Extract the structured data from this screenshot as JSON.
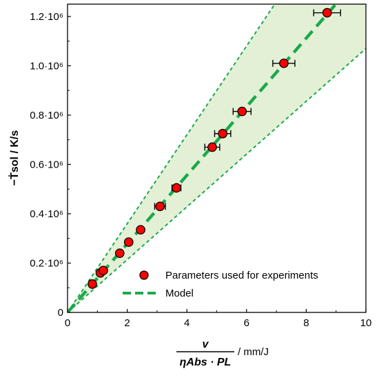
{
  "chart_data": {
    "type": "scatter",
    "xlim": [
      0,
      10
    ],
    "ylim": [
      0,
      1250000
    ],
    "xticks": [
      {
        "value": 0,
        "label": "0"
      },
      {
        "value": 2,
        "label": "2"
      },
      {
        "value": 4,
        "label": "4"
      },
      {
        "value": 6,
        "label": "6"
      },
      {
        "value": 8,
        "label": "8"
      },
      {
        "value": 10,
        "label": "10"
      }
    ],
    "yticks": [
      {
        "value": 0,
        "label": "0"
      },
      {
        "value": 200000,
        "label": "0.2·10⁶"
      },
      {
        "value": 400000,
        "label": "0.4·10⁶"
      },
      {
        "value": 600000,
        "label": "0.6·10⁶"
      },
      {
        "value": 800000,
        "label": "0.8·10⁶"
      },
      {
        "value": 1000000,
        "label": "1.0·10⁶"
      },
      {
        "value": 1200000,
        "label": "1.2·10⁶"
      }
    ],
    "xlabel": {
      "numerator": "v",
      "denominator": "ηAbs · PL",
      "unit": "/ mm/J"
    },
    "ylabel": {
      "main": "−Ṫsol / K/s"
    },
    "grid": false,
    "legend_position": "bottom-right",
    "series": [
      {
        "name": "Parameters used for experiments",
        "kind": "points_with_xerror",
        "marker_fill": "#ff0000",
        "marker_edge": "#000000",
        "points": [
          {
            "x": 0.83,
            "y": 115000,
            "xerr": 0.0
          },
          {
            "x": 1.1,
            "y": 160000,
            "xerr": 0.0
          },
          {
            "x": 1.2,
            "y": 170000,
            "xerr": 0.0
          },
          {
            "x": 1.75,
            "y": 240000,
            "xerr": 0.0
          },
          {
            "x": 2.05,
            "y": 285000,
            "xerr": 0.0
          },
          {
            "x": 2.45,
            "y": 335000,
            "xerr": 0.0
          },
          {
            "x": 3.1,
            "y": 430000,
            "xerr": 0.18
          },
          {
            "x": 3.65,
            "y": 505000,
            "xerr": 0.15
          },
          {
            "x": 4.85,
            "y": 670000,
            "xerr": 0.25
          },
          {
            "x": 5.2,
            "y": 725000,
            "xerr": 0.27
          },
          {
            "x": 5.85,
            "y": 815000,
            "xerr": 0.3
          },
          {
            "x": 7.25,
            "y": 1010000,
            "xerr": 0.37
          },
          {
            "x": 8.7,
            "y": 1215000,
            "xerr": 0.45
          }
        ]
      },
      {
        "name": "Model",
        "kind": "line",
        "style": "dashed",
        "color": "#1aaa4a",
        "slope": 139000
      }
    ],
    "band": {
      "fill": "#e3f0d6",
      "edge_color": "#1aaa4a",
      "lower_slope": 107000,
      "upper_slope": 180000
    }
  }
}
